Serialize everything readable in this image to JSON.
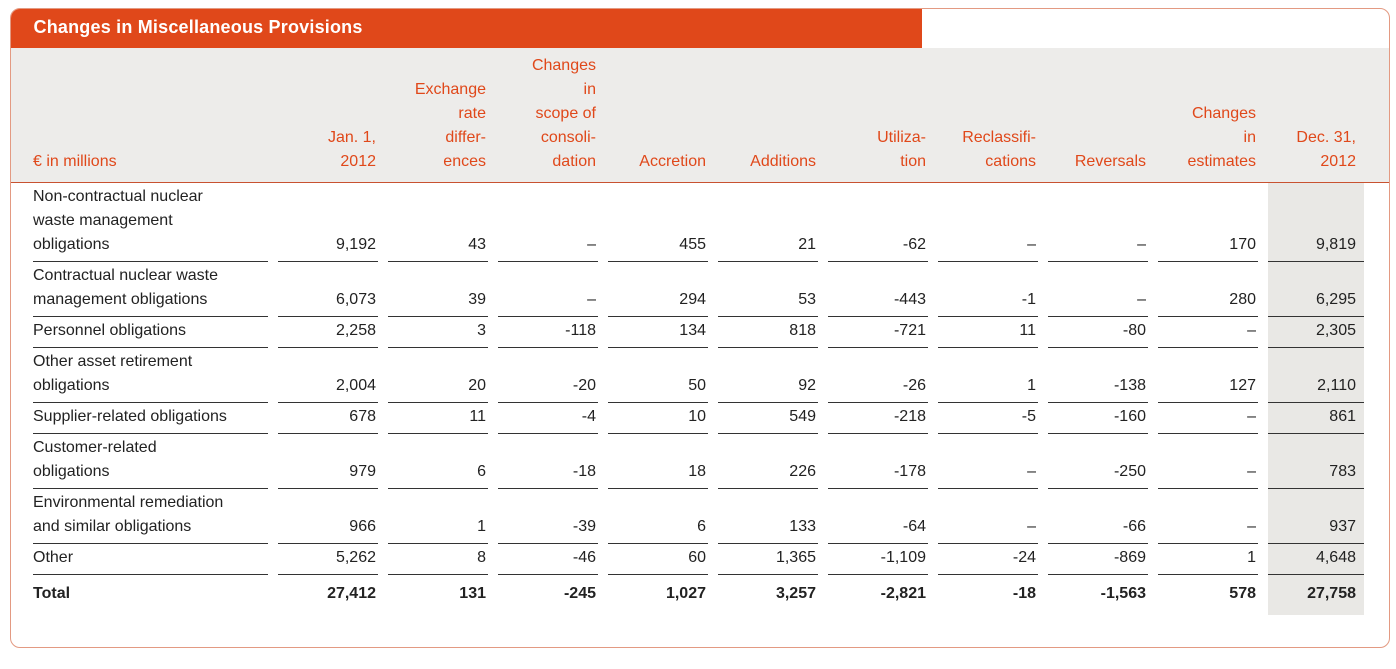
{
  "title": "Changes in Miscellaneous Provisions",
  "table": {
    "unit_label": "€ in millions",
    "columns": [
      "Jan. 1,\n2012",
      "Exchange\nrate\ndiffer-\nences",
      "Changes\nin\nscope of\nconsoli-\ndation",
      "Accretion",
      "Additions",
      "Utiliza-\ntion",
      "Reclassifi-\ncations",
      "Reversals",
      "Changes\nin\nestimates",
      "Dec. 31,\n2012"
    ],
    "rows": [
      {
        "label": "Non-contractual nuclear\nwaste management\nobligations",
        "values": [
          "9,192",
          "43",
          "–",
          "455",
          "21",
          "-62",
          "–",
          "–",
          "170",
          "9,819"
        ],
        "total": false
      },
      {
        "label": "Contractual nuclear waste\nmanagement obligations",
        "values": [
          "6,073",
          "39",
          "–",
          "294",
          "53",
          "-443",
          "-1",
          "–",
          "280",
          "6,295"
        ],
        "total": false
      },
      {
        "label": "Personnel obligations",
        "values": [
          "2,258",
          "3",
          "-118",
          "134",
          "818",
          "-721",
          "11",
          "-80",
          "–",
          "2,305"
        ],
        "total": false
      },
      {
        "label": "Other asset retirement\nobligations",
        "values": [
          "2,004",
          "20",
          "-20",
          "50",
          "92",
          "-26",
          "1",
          "-138",
          "127",
          "2,110"
        ],
        "total": false
      },
      {
        "label": "Supplier-related obligations",
        "values": [
          "678",
          "11",
          "-4",
          "10",
          "549",
          "-218",
          "-5",
          "-160",
          "–",
          "861"
        ],
        "total": false
      },
      {
        "label": "Customer-related\nobligations",
        "values": [
          "979",
          "6",
          "-18",
          "18",
          "226",
          "-178",
          "–",
          "-250",
          "–",
          "783"
        ],
        "total": false
      },
      {
        "label": "Environmental remediation\nand similar obligations",
        "values": [
          "966",
          "1",
          "-39",
          "6",
          "133",
          "-64",
          "–",
          "-66",
          "–",
          "937"
        ],
        "total": false
      },
      {
        "label": "Other",
        "values": [
          "5,262",
          "8",
          "-46",
          "60",
          "1,365",
          "-1,109",
          "-24",
          "-869",
          "1",
          "4,648"
        ],
        "total": false
      },
      {
        "label": "Total",
        "values": [
          "27,412",
          "131",
          "-245",
          "1,027",
          "3,257",
          "-2,821",
          "-18",
          "-1,563",
          "578",
          "27,758"
        ],
        "total": true
      }
    ]
  },
  "colors": {
    "accent": "#E0481A",
    "title_text": "#FFFFFF",
    "body_text": "#222222",
    "header_bg": "#EDECEA",
    "stripe_bg": "#E9E8E5",
    "rule_dark": "#333333",
    "header_rule": "#C85230",
    "card_border": "#E39A82"
  }
}
